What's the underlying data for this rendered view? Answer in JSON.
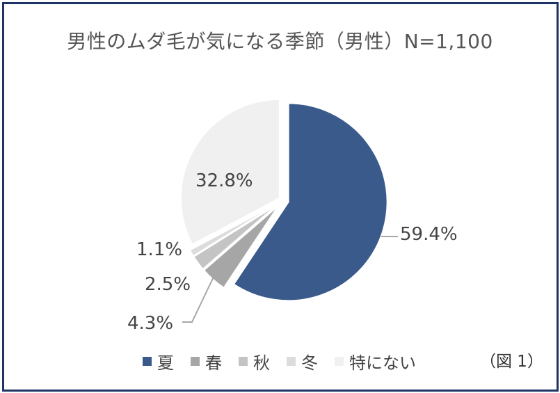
{
  "title": "男性のムダ毛が気になる季節（男性）N=1,100",
  "figure_label": "（図 1）",
  "chart_data": {
    "type": "pie",
    "title": "男性のムダ毛が気になる季節（男性）N=1,100",
    "categories": [
      "夏",
      "春",
      "秋",
      "冬",
      "特にない"
    ],
    "values": [
      59.4,
      4.3,
      2.5,
      1.1,
      32.8
    ],
    "value_labels": [
      "59.4%",
      "4.3%",
      "2.5%",
      "1.1%",
      "32.8%"
    ],
    "colors": [
      "#3b5a8c",
      "#a6a6a6",
      "#c4c4c4",
      "#dcdcdc",
      "#f0f0f0"
    ],
    "legend_position": "bottom",
    "exploded": true
  }
}
